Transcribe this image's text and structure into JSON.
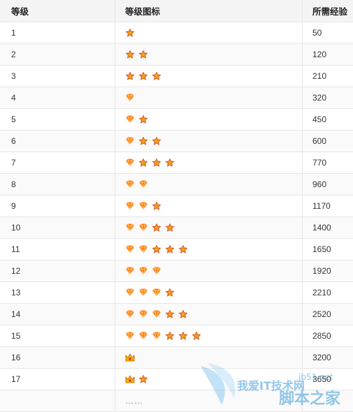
{
  "table": {
    "headers": [
      "等级",
      "等级图标",
      "所需经验"
    ],
    "rows": [
      {
        "level": "1",
        "icons": [
          "sun"
        ],
        "exp": "50"
      },
      {
        "level": "2",
        "icons": [
          "sun",
          "sun"
        ],
        "exp": "120"
      },
      {
        "level": "3",
        "icons": [
          "sun",
          "sun",
          "sun"
        ],
        "exp": "210"
      },
      {
        "level": "4",
        "icons": [
          "moon"
        ],
        "exp": "320"
      },
      {
        "level": "5",
        "icons": [
          "moon",
          "sun"
        ],
        "exp": "450"
      },
      {
        "level": "6",
        "icons": [
          "moon",
          "sun",
          "sun"
        ],
        "exp": "600"
      },
      {
        "level": "7",
        "icons": [
          "moon",
          "sun",
          "sun",
          "sun"
        ],
        "exp": "770"
      },
      {
        "level": "8",
        "icons": [
          "moon",
          "moon"
        ],
        "exp": "960"
      },
      {
        "level": "9",
        "icons": [
          "moon",
          "moon",
          "sun"
        ],
        "exp": "1170"
      },
      {
        "level": "10",
        "icons": [
          "moon",
          "moon",
          "sun",
          "sun"
        ],
        "exp": "1400"
      },
      {
        "level": "11",
        "icons": [
          "moon",
          "moon",
          "sun",
          "sun",
          "sun"
        ],
        "exp": "1650"
      },
      {
        "level": "12",
        "icons": [
          "moon",
          "moon",
          "moon"
        ],
        "exp": "1920"
      },
      {
        "level": "13",
        "icons": [
          "moon",
          "moon",
          "moon",
          "sun"
        ],
        "exp": "2210"
      },
      {
        "level": "14",
        "icons": [
          "moon",
          "moon",
          "moon",
          "sun",
          "sun"
        ],
        "exp": "2520"
      },
      {
        "level": "15",
        "icons": [
          "moon",
          "moon",
          "moon",
          "sun",
          "sun",
          "sun"
        ],
        "exp": "2850"
      },
      {
        "level": "16",
        "icons": [
          "crown"
        ],
        "exp": "3200"
      },
      {
        "level": "17",
        "icons": [
          "crown",
          "sun"
        ],
        "exp": "3650"
      },
      {
        "level": "",
        "icons": [],
        "exp": "",
        "ellipsis": "……"
      }
    ]
  },
  "watermark": {
    "line1": "jb51.net",
    "line2": "脚本之家",
    "site_mark": "我爱IT技术网"
  },
  "colors": {
    "header_bg": "#f4f4f4",
    "border": "#e6e6e6",
    "sun": "#f0a020",
    "moon": "#ff7a1a",
    "crown": "#f0b400"
  }
}
